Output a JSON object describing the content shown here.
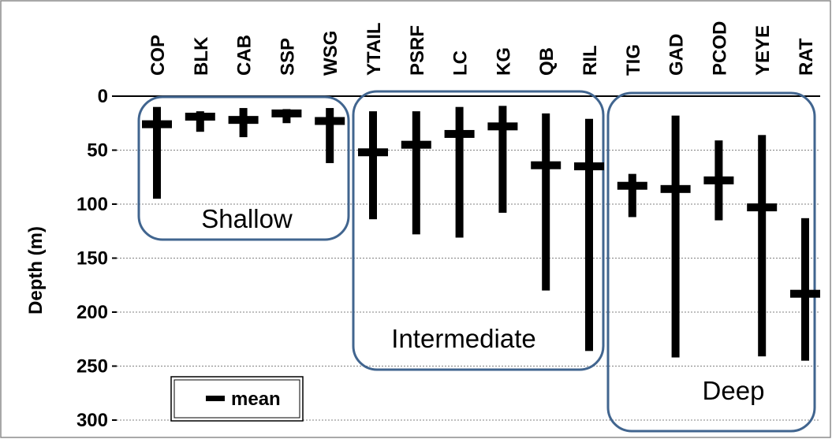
{
  "chart_data": {
    "type": "range",
    "title": "",
    "xlabel": "",
    "ylabel": "Depth (m)",
    "ylim": [
      0,
      300
    ],
    "y_inverted": true,
    "y_ticks": [
      0,
      50,
      100,
      150,
      200,
      250,
      300
    ],
    "grid": true,
    "categories": [
      "COP",
      "BLK",
      "CAB",
      "SSP",
      "WSG",
      "YTAIL",
      "PSRF",
      "LC",
      "KG",
      "QB",
      "RIL",
      "TIG",
      "GAD",
      "PCOD",
      "YEYE",
      "RAT"
    ],
    "series": [
      {
        "min": [
          10,
          14,
          11,
          12,
          11,
          14,
          14,
          10,
          9,
          16,
          21,
          72,
          18,
          41,
          36,
          113
        ],
        "max": [
          95,
          33,
          38,
          25,
          62,
          114,
          128,
          131,
          108,
          180,
          236,
          112,
          242,
          115,
          241,
          245
        ],
        "mean": [
          26,
          19,
          22,
          16,
          23,
          52,
          45,
          35,
          28,
          64,
          65,
          83,
          86,
          78,
          103,
          183
        ]
      }
    ],
    "groups": [
      {
        "label": "Shallow",
        "color": "#41658f"
      },
      {
        "label": "Intermediate",
        "color": "#41658f"
      },
      {
        "label": "Deep",
        "color": "#41658f"
      }
    ],
    "legend": {
      "label": "mean",
      "placement": "bottom-left"
    }
  }
}
